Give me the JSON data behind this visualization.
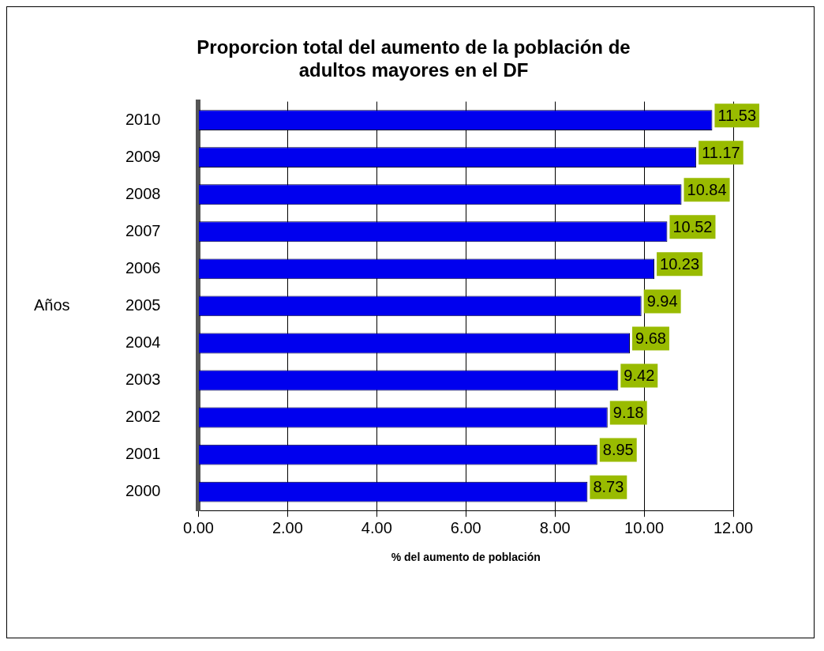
{
  "chart_data": {
    "type": "bar",
    "orientation": "horizontal",
    "title": "Proporcion total del aumento de la población de adultos mayores en el DF",
    "xlabel": "% del aumento de población",
    "ylabel": "Años",
    "categories": [
      "2010",
      "2009",
      "2008",
      "2007",
      "2006",
      "2005",
      "2004",
      "2003",
      "2002",
      "2001",
      "2000"
    ],
    "values": [
      11.53,
      11.17,
      10.84,
      10.52,
      10.23,
      9.94,
      9.68,
      9.42,
      9.18,
      8.95,
      8.73
    ],
    "color": "#0000ee",
    "xlim": [
      0,
      12
    ],
    "xticks": [
      {
        "value": 0,
        "label": "0.00"
      },
      {
        "value": 2,
        "label": "2.00"
      },
      {
        "value": 4,
        "label": "4.00"
      },
      {
        "value": 6,
        "label": "6.00"
      },
      {
        "value": 8,
        "label": "8.00"
      },
      {
        "value": 10,
        "label": "10.00"
      },
      {
        "value": 12,
        "label": "12.00"
      }
    ],
    "grid": "x",
    "legend": false,
    "data_labels": true
  }
}
